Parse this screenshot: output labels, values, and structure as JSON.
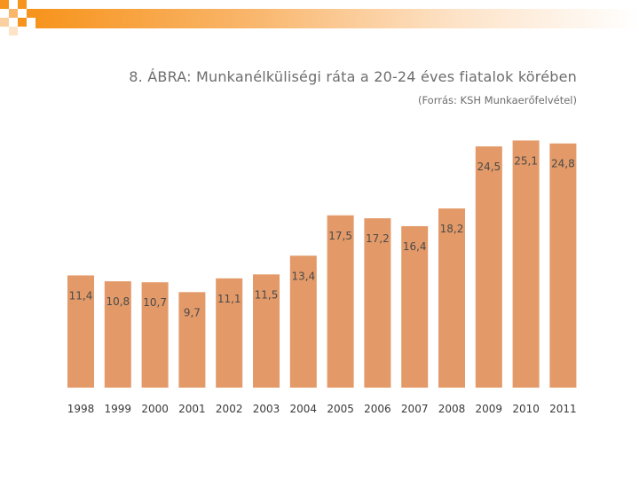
{
  "chart_data": {
    "type": "bar",
    "title": "8. ÁBRA: Munkanélküliségi ráta a 20-24 éves fiatalok körében",
    "subtitle": "(Forrás: KSH Munkaerőfelvétel)",
    "categories": [
      "1998",
      "1999",
      "2000",
      "2001",
      "2002",
      "2003",
      "2004",
      "2005",
      "2006",
      "2007",
      "2008",
      "2009",
      "2010",
      "2011"
    ],
    "values": [
      11.4,
      10.8,
      10.7,
      9.7,
      11.1,
      11.5,
      13.4,
      17.5,
      17.2,
      16.4,
      18.2,
      24.5,
      25.1,
      24.8
    ],
    "value_labels": [
      "11,4",
      "10,8",
      "10,7",
      "9,7",
      "11,1",
      "11,5",
      "13,4",
      "17,5",
      "17,2",
      "16,4",
      "18,2",
      "24,5",
      "25,1",
      "24,8"
    ],
    "ylim": [
      0,
      26
    ],
    "grid": false,
    "bar_color": "#e39a68",
    "accent_color": "#f7941d"
  }
}
